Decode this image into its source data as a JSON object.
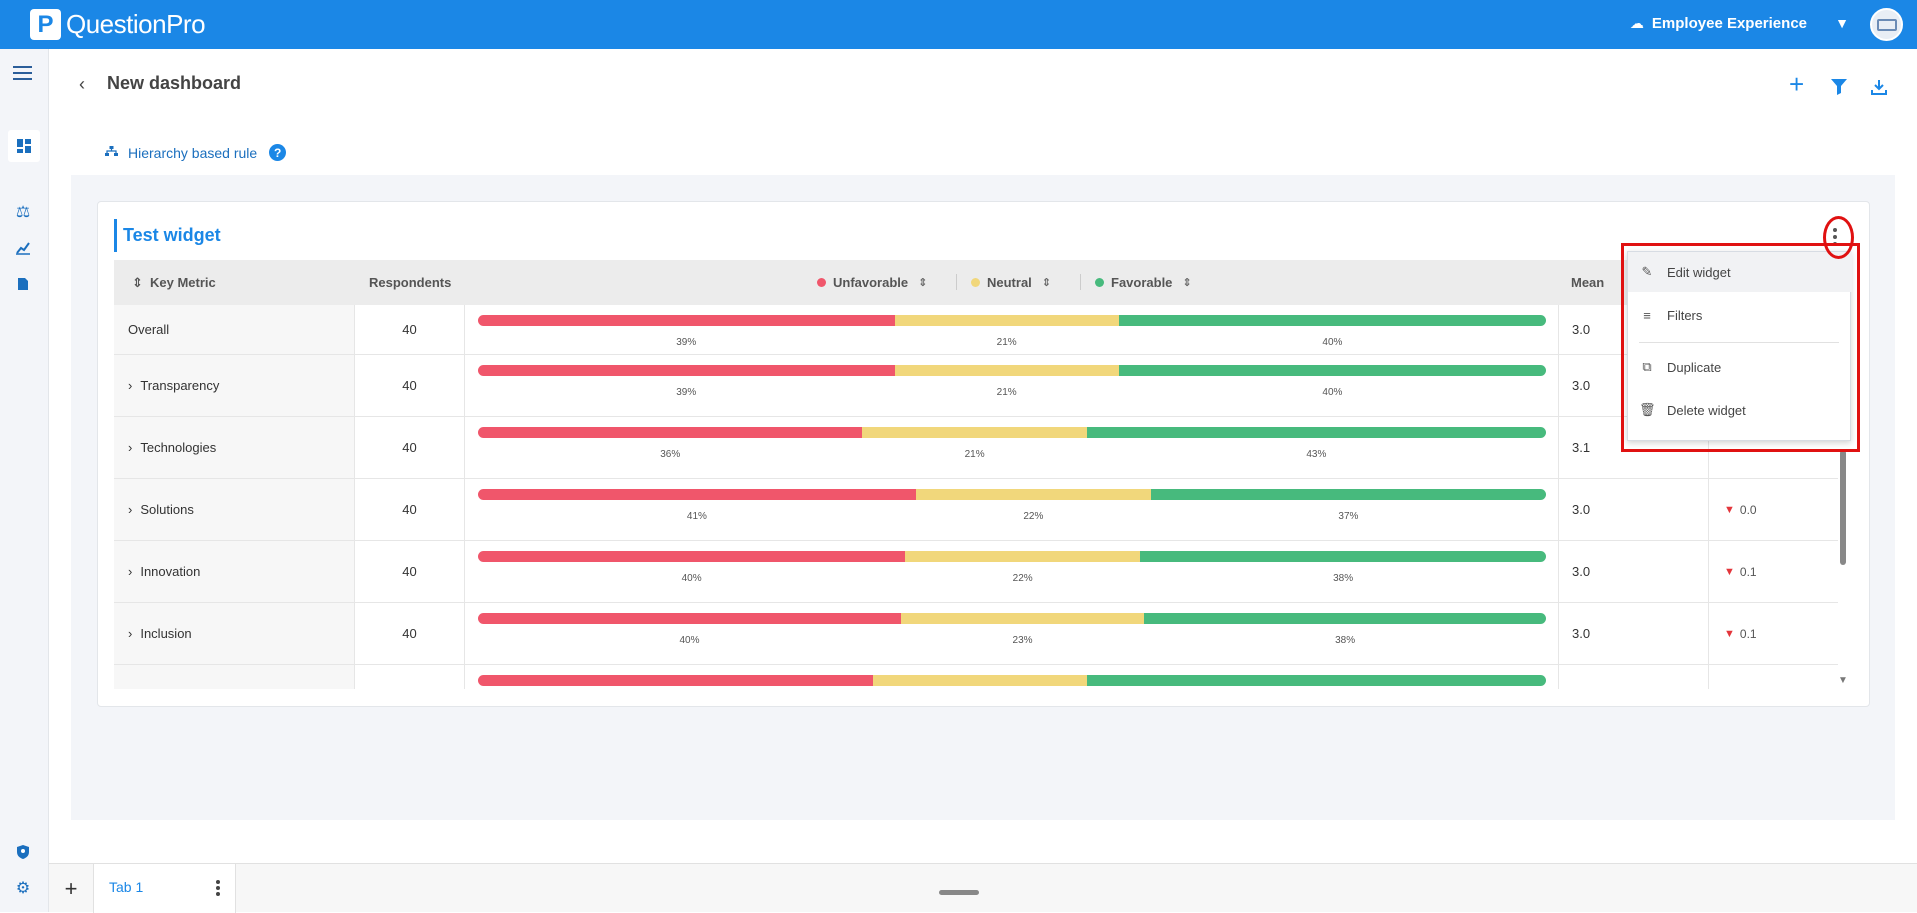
{
  "app": {
    "name": "QuestionPro",
    "logo_letter": "P",
    "product": "Employee Experience"
  },
  "header": {
    "title": "New dashboard"
  },
  "rule": {
    "label": "Hierarchy based rule",
    "help": "?"
  },
  "widget": {
    "title": "Test widget",
    "columns": {
      "key_metric": "Key Metric",
      "respondents": "Respondents",
      "unfavorable": "Unfavorable",
      "neutral": "Neutral",
      "favorable": "Favorable",
      "mean": "Mean"
    },
    "colors": {
      "unfavorable": "#f0566b",
      "neutral": "#f1d77b",
      "favorable": "#47ba7d"
    },
    "rows": [
      {
        "name": "Overall",
        "respondents": "40",
        "unfav": 39,
        "neutral": 21,
        "fav": 40,
        "unfav_label": "39%",
        "neutral_label": "21%",
        "fav_label": "40%",
        "mean": "3.0",
        "change": "",
        "expandable": false
      },
      {
        "name": "Transparency",
        "respondents": "40",
        "unfav": 39,
        "neutral": 21,
        "fav": 40,
        "unfav_label": "39%",
        "neutral_label": "21%",
        "fav_label": "40%",
        "mean": "3.0",
        "change": "",
        "expandable": true
      },
      {
        "name": "Technologies",
        "respondents": "40",
        "unfav": 36,
        "neutral": 21,
        "fav": 43,
        "unfav_label": "36%",
        "neutral_label": "21%",
        "fav_label": "43%",
        "mean": "3.1",
        "change": "",
        "expandable": true
      },
      {
        "name": "Solutions",
        "respondents": "40",
        "unfav": 41,
        "neutral": 22,
        "fav": 37,
        "unfav_label": "41%",
        "neutral_label": "22%",
        "fav_label": "37%",
        "mean": "3.0",
        "change": "0.0",
        "expandable": true
      },
      {
        "name": "Innovation",
        "respondents": "40",
        "unfav": 40,
        "neutral": 22,
        "fav": 38,
        "unfav_label": "40%",
        "neutral_label": "22%",
        "fav_label": "38%",
        "mean": "3.0",
        "change": "0.1",
        "expandable": true
      },
      {
        "name": "Inclusion",
        "respondents": "40",
        "unfav": 40,
        "neutral": 23,
        "fav": 38,
        "unfav_label": "40%",
        "neutral_label": "23%",
        "fav_label": "38%",
        "mean": "3.0",
        "change": "0.1",
        "expandable": true
      },
      {
        "name": "",
        "respondents": "",
        "unfav": 37,
        "neutral": 20,
        "fav": 43,
        "unfav_label": "",
        "neutral_label": "",
        "fav_label": "",
        "mean": "",
        "change": "",
        "expandable": false
      }
    ]
  },
  "menu": {
    "items": [
      {
        "label": "Edit widget",
        "icon": "pencil-icon"
      },
      {
        "label": "Filters",
        "icon": "filter-lines-icon"
      },
      {
        "label": "Duplicate",
        "icon": "copy-icon"
      },
      {
        "label": "Delete widget",
        "icon": "trash-icon"
      }
    ]
  },
  "tabs": {
    "items": [
      {
        "label": "Tab 1"
      }
    ],
    "add": "+"
  }
}
